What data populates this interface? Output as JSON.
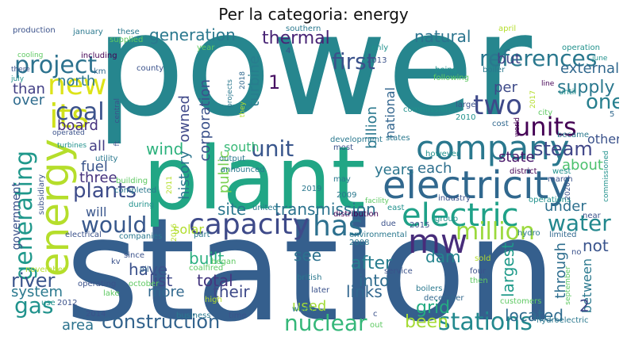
{
  "title": "Per la categoria: energy",
  "words": {
    "power": {
      "text": "power",
      "color": "#26868e"
    },
    "station": {
      "text": "station",
      "color": "#355f8d"
    },
    "plant": {
      "text": "plant",
      "color": "#21a685"
    },
    "company": {
      "text": "company",
      "color": "#2a788e"
    },
    "electricity": {
      "text": "electricity",
      "color": "#31688e"
    },
    "energy": {
      "text": "energy",
      "color": "#b5de2b"
    },
    "capacity": {
      "text": "capacity",
      "color": "#3e4a89"
    },
    "mw": {
      "text": "mw",
      "color": "#472c7a"
    },
    "electric": {
      "text": "electric",
      "color": "#1fa188"
    },
    "its": {
      "text": "its",
      "color": "#d0e11c"
    },
    "new": {
      "text": "new",
      "color": "#dde318"
    },
    "coal": {
      "text": "coal",
      "color": "#3b528b"
    },
    "two": {
      "text": "two",
      "color": "#3e4989"
    },
    "units": {
      "text": "units",
      "color": "#440154"
    },
    "unit": {
      "text": "unit",
      "color": "#39568c"
    },
    "has": {
      "text": "has",
      "color": "#2d708e"
    },
    "construction": {
      "text": "construction",
      "color": "#33638d"
    },
    "nuclear": {
      "text": "nuclear",
      "color": "#35b779"
    },
    "stations": {
      "text": "stations",
      "color": "#23898e"
    },
    "project": {
      "text": "project",
      "color": "#2c728e"
    },
    "first": {
      "text": "first",
      "color": "#3b528b"
    },
    "references": {
      "text": "references",
      "color": "#2a788e"
    },
    "generating": {
      "text": "generating",
      "color": "#1f988b"
    },
    "gas": {
      "text": "gas",
      "color": "#20928c"
    },
    "would": {
      "text": "would",
      "color": "#38588c"
    },
    "plants": {
      "text": "plants",
      "color": "#3e4c8a"
    },
    "million": {
      "text": "million",
      "color": "#9bd93c"
    },
    "water": {
      "text": "water",
      "color": "#23888e"
    },
    "one": {
      "text": "one",
      "color": "#277f8e"
    },
    "steam": {
      "text": "steam",
      "color": "#404688"
    },
    "generation": {
      "text": "generation",
      "color": "#2a788e"
    },
    "thermal": {
      "text": "thermal",
      "color": "#482475"
    },
    "natural": {
      "text": "natural",
      "color": "#2b748e"
    },
    "river": {
      "text": "river",
      "color": "#3a548c"
    },
    "been": {
      "text": "been",
      "color": "#a5db36"
    },
    "built": {
      "text": "built",
      "color": "#29af7f"
    },
    "into": {
      "text": "into",
      "color": "#2f6c8e"
    },
    "grid": {
      "text": "grid",
      "color": "#25ac82"
    },
    "supply": {
      "text": "supply",
      "color": "#2a788e"
    },
    "wind": {
      "text": "wind",
      "color": "#2db27d"
    },
    "dam": {
      "text": "dam",
      "color": "#25848e"
    },
    "after": {
      "text": "after",
      "color": "#287d8e"
    },
    "have": {
      "text": "have",
      "color": "#3b518b"
    },
    "site": {
      "text": "site",
      "color": "#2a778e"
    },
    "list": {
      "text": "list",
      "color": "#3f4889"
    },
    "total": {
      "text": "total",
      "color": "#45377f"
    },
    "transmission": {
      "text": "transmission",
      "color": "#2c738e"
    },
    "system": {
      "text": "system",
      "color": "#2a788e"
    },
    "area": {
      "text": "area",
      "color": "#2c738e"
    },
    "located": {
      "text": "located",
      "color": "#2f6b8e"
    },
    "used": {
      "text": "used",
      "color": "#a2da37"
    },
    "links": {
      "text": "links",
      "color": "#31678e"
    },
    "see": {
      "text": "see",
      "color": "#2c718e"
    },
    "their": {
      "text": "their",
      "color": "#3e4a89"
    },
    "more": {
      "text": "more",
      "color": "#31688e"
    },
    "three": {
      "text": "three",
      "color": "#46327e"
    },
    "fuel": {
      "text": "fuel",
      "color": "#3a548c"
    },
    "all": {
      "text": "all",
      "color": "#433d84"
    },
    "board": {
      "text": "board",
      "color": "#46307e"
    },
    "over": {
      "text": "over",
      "color": "#2f6c8e"
    },
    "than": {
      "text": "than",
      "color": "#423f85"
    },
    "north": {
      "text": "north",
      "color": "#2a788e"
    },
    "will": {
      "text": "will",
      "color": "#39568c"
    },
    "solar": {
      "text": "solar",
      "color": "#b2dd2d"
    },
    "years": {
      "text": "years",
      "color": "#2b758e"
    },
    "each": {
      "text": "each",
      "color": "#2e6f8e"
    },
    "state": {
      "text": "state",
      "color": "#48186a"
    },
    "about": {
      "text": "about",
      "color": "#4ac16d"
    },
    "other": {
      "text": "other",
      "color": "#3b528b"
    },
    "under": {
      "text": "under",
      "color": "#2d708e"
    },
    "south": {
      "text": "south",
      "color": "#38b977"
    },
    "public": {
      "text": "public",
      "color": "#7ad151"
    },
    "history": {
      "text": "history",
      "color": "#2b748e"
    },
    "corporation": {
      "text": "corporation",
      "color": "#3b528b"
    },
    "owned": {
      "text": "owned",
      "color": "#3f4889"
    },
    "turbine": {
      "text": "turbine",
      "color": "#287d8e"
    },
    "billion": {
      "text": "billion",
      "color": "#2a788e"
    },
    "national": {
      "text": "national",
      "color": "#32658e"
    },
    "external": {
      "text": "external",
      "color": "#31688e"
    },
    "but": {
      "text": "but",
      "color": "#404588"
    },
    "per": {
      "text": "per",
      "color": "#3e4a89"
    },
    "not": {
      "text": "not",
      "color": "#3a548c"
    },
    "between": {
      "text": "between",
      "color": "#2a788e"
    },
    "through": {
      "text": "through",
      "color": "#2e6e8e"
    },
    "largest": {
      "text": "largest",
      "color": "#1f9a8a"
    },
    "number-1": {
      "text": "1",
      "color": "#471063"
    },
    "number-2": {
      "text": "2",
      "color": "#3f4889"
    },
    "government": {
      "text": "government",
      "color": "#3b528b"
    },
    "production": {
      "text": "production",
      "color": "#3b528b"
    },
    "january": {
      "text": "january",
      "color": "#2a788e"
    },
    "these": {
      "text": "these",
      "color": "#2a788e"
    },
    "supplied": {
      "text": "supplied",
      "color": "#5ec962"
    },
    "southern": {
      "text": "southern",
      "color": "#2a788e"
    },
    "april": {
      "text": "april",
      "color": "#b5de2b"
    },
    "operation": {
      "text": "operation",
      "color": "#21918c"
    },
    "cooling": {
      "text": "cooling",
      "color": "#5ec962"
    },
    "including": {
      "text": "including",
      "color": "#440154"
    },
    "there": {
      "text": "there",
      "color": "#3b528b"
    },
    "july": {
      "text": "july",
      "color": "#21918c"
    },
    "km": {
      "text": "km",
      "color": "#31688e"
    },
    "county": {
      "text": "county",
      "color": "#3b528b"
    },
    "year": {
      "text": "year",
      "color": "#5ec962"
    },
    "boiler": {
      "text": "boiler",
      "color": "#2a788e"
    },
    "only": {
      "text": "only",
      "color": "#21918c"
    },
    "y2013": {
      "text": "2013",
      "color": "#3b528b"
    },
    "june": {
      "text": "june",
      "color": "#21918c"
    },
    "being": {
      "text": "being",
      "color": "#21918c"
    },
    "following": {
      "text": "following",
      "color": "#5ec962"
    },
    "until": {
      "text": "until",
      "color": "#21918c"
    },
    "line": {
      "text": "line",
      "color": "#440154"
    },
    "large": {
      "text": "large",
      "color": "#3b528b"
    },
    "y2010": {
      "text": "2010",
      "color": "#21918c"
    },
    "city": {
      "text": "city",
      "color": "#5ec962"
    },
    "cost": {
      "text": "cost",
      "color": "#31688e"
    },
    "world": {
      "text": "world",
      "color": "#440154"
    },
    "became": {
      "text": "became",
      "color": "#2a788e"
    },
    "commission": {
      "text": "commission",
      "color": "#21918c"
    },
    "development": {
      "text": "development",
      "color": "#2a788e"
    },
    "states": {
      "text": "states",
      "color": "#2a788e"
    },
    "most": {
      "text": "most",
      "color": "#3b528b"
    },
    "commissioned": {
      "text": "commissioned",
      "color": "#21918c"
    },
    "operated": {
      "text": "operated",
      "color": "#3b528b"
    },
    "utility": {
      "text": "utility",
      "color": "#2a788e"
    },
    "turbines": {
      "text": "turbines",
      "color": "#21918c"
    },
    "output": {
      "text": "output",
      "color": "#2a788e"
    },
    "announced": {
      "text": "announced",
      "color": "#2a788e"
    },
    "however": {
      "text": "however",
      "color": "#21918c"
    },
    "west": {
      "text": "west",
      "color": "#21918c"
    },
    "march": {
      "text": "march",
      "color": "#3b528b"
    },
    "district": {
      "text": "district",
      "color": "#440154"
    },
    "building": {
      "text": "building",
      "color": "#5ec962"
    },
    "completed": {
      "text": "completed",
      "color": "#2a788e"
    },
    "subsidiary": {
      "text": "subsidiary",
      "color": "#3b528b"
    },
    "during": {
      "text": "during",
      "color": "#21918c"
    },
    "y2019": {
      "text": "2019",
      "color": "#2a788e"
    },
    "y2009": {
      "text": "2009",
      "color": "#2a788e"
    },
    "united": {
      "text": "united",
      "color": "#2a788e"
    },
    "industry": {
      "text": "industry",
      "color": "#3b528b"
    },
    "east": {
      "text": "east",
      "color": "#21918c"
    },
    "operations": {
      "text": "operations",
      "color": "#21918c"
    },
    "near": {
      "text": "near",
      "color": "#3b528b"
    },
    "hydro": {
      "text": "hydro",
      "color": "#2a788e"
    },
    "limited": {
      "text": "limited",
      "color": "#31688e"
    },
    "no": {
      "text": "no",
      "color": "#3b528b"
    },
    "group": {
      "text": "group",
      "color": "#21918c"
    },
    "y2015": {
      "text": "2015",
      "color": "#3b528b"
    },
    "electrical": {
      "text": "electrical",
      "color": "#3b528b"
    },
    "companies": {
      "text": "companies",
      "color": "#2a788e"
    },
    "part": {
      "text": "part",
      "color": "#2a788e"
    },
    "environmental": {
      "text": "environmental",
      "color": "#2a788e"
    },
    "due": {
      "text": "due",
      "color": "#3b528b"
    },
    "distribution": {
      "text": "distribution",
      "color": "#440154"
    },
    "y2008": {
      "text": "2008",
      "color": "#2a788e"
    },
    "since": {
      "text": "since",
      "color": "#3b528b"
    },
    "began": {
      "text": "began",
      "color": "#5ec962"
    },
    "coalfired": {
      "text": "coalfired",
      "color": "#5ec962"
    },
    "oil": {
      "text": "oil",
      "color": "#31688e"
    },
    "kv": {
      "text": "kv",
      "color": "#3b528b"
    },
    "british": {
      "text": "british",
      "color": "#2a788e"
    },
    "service": {
      "text": "service",
      "color": "#3b528b"
    },
    "four": {
      "text": "four",
      "color": "#3b528b"
    },
    "then": {
      "text": "then",
      "color": "#5ec962"
    },
    "sold": {
      "text": "sold",
      "color": "#b5de2b"
    },
    "september": {
      "text": "september",
      "color": "#5ec962"
    },
    "operating": {
      "text": "operating",
      "color": "#3b528b"
    },
    "november": {
      "text": "november",
      "color": "#b5de2b"
    },
    "lake": {
      "text": "lake",
      "color": "#5ec962"
    },
    "use": {
      "text": "use",
      "color": "#21918c"
    },
    "y2012": {
      "text": "2012",
      "color": "#3b528b"
    },
    "y2014": {
      "text": "2014",
      "color": "#3b528b"
    },
    "october": {
      "text": "october",
      "color": "#5ec962"
    },
    "high": {
      "text": "high",
      "color": "#b5de2b"
    },
    "later": {
      "text": "later",
      "color": "#3b528b"
    },
    "boilers": {
      "text": "boilers",
      "color": "#2a788e"
    },
    "december": {
      "text": "december",
      "color": "#31688e"
    },
    "customers": {
      "text": "customers",
      "color": "#5ec962"
    },
    "hydroelectric": {
      "text": "hydroelectric",
      "color": "#2a788e"
    },
    "business": {
      "text": "business",
      "color": "#2a788e"
    },
    "time": {
      "text": "time",
      "color": "#3b528b"
    },
    "out": {
      "text": "out",
      "color": "#5ec962"
    },
    "when": {
      "text": "when",
      "color": "#2a788e"
    },
    "y2018": {
      "text": "2018",
      "color": "#31688e"
    },
    "y2017": {
      "text": "2017",
      "color": "#b5de2b"
    },
    "y2016": {
      "text": "2016",
      "color": "#b5de2b"
    },
    "y2011": {
      "text": "2011",
      "color": "#b5de2b"
    },
    "y2020": {
      "text": "2020",
      "color": "#3b528b"
    },
    "they": {
      "text": "they",
      "color": "#b5de2b"
    },
    "projects": {
      "text": "projects",
      "color": "#2a788e"
    },
    "central": {
      "text": "central",
      "color": "#3b528b"
    },
    "ft": {
      "text": "ft",
      "color": "#3b528b"
    },
    "facility": {
      "text": "facility",
      "color": "#5ec962"
    },
    "may": {
      "text": "may",
      "color": "#2a788e"
    },
    "number-4": {
      "text": "4",
      "color": "#3b528b"
    },
    "number-5": {
      "text": "5",
      "color": "#31688e"
    },
    "c": {
      "text": "c",
      "color": "#3b528b"
    }
  }
}
